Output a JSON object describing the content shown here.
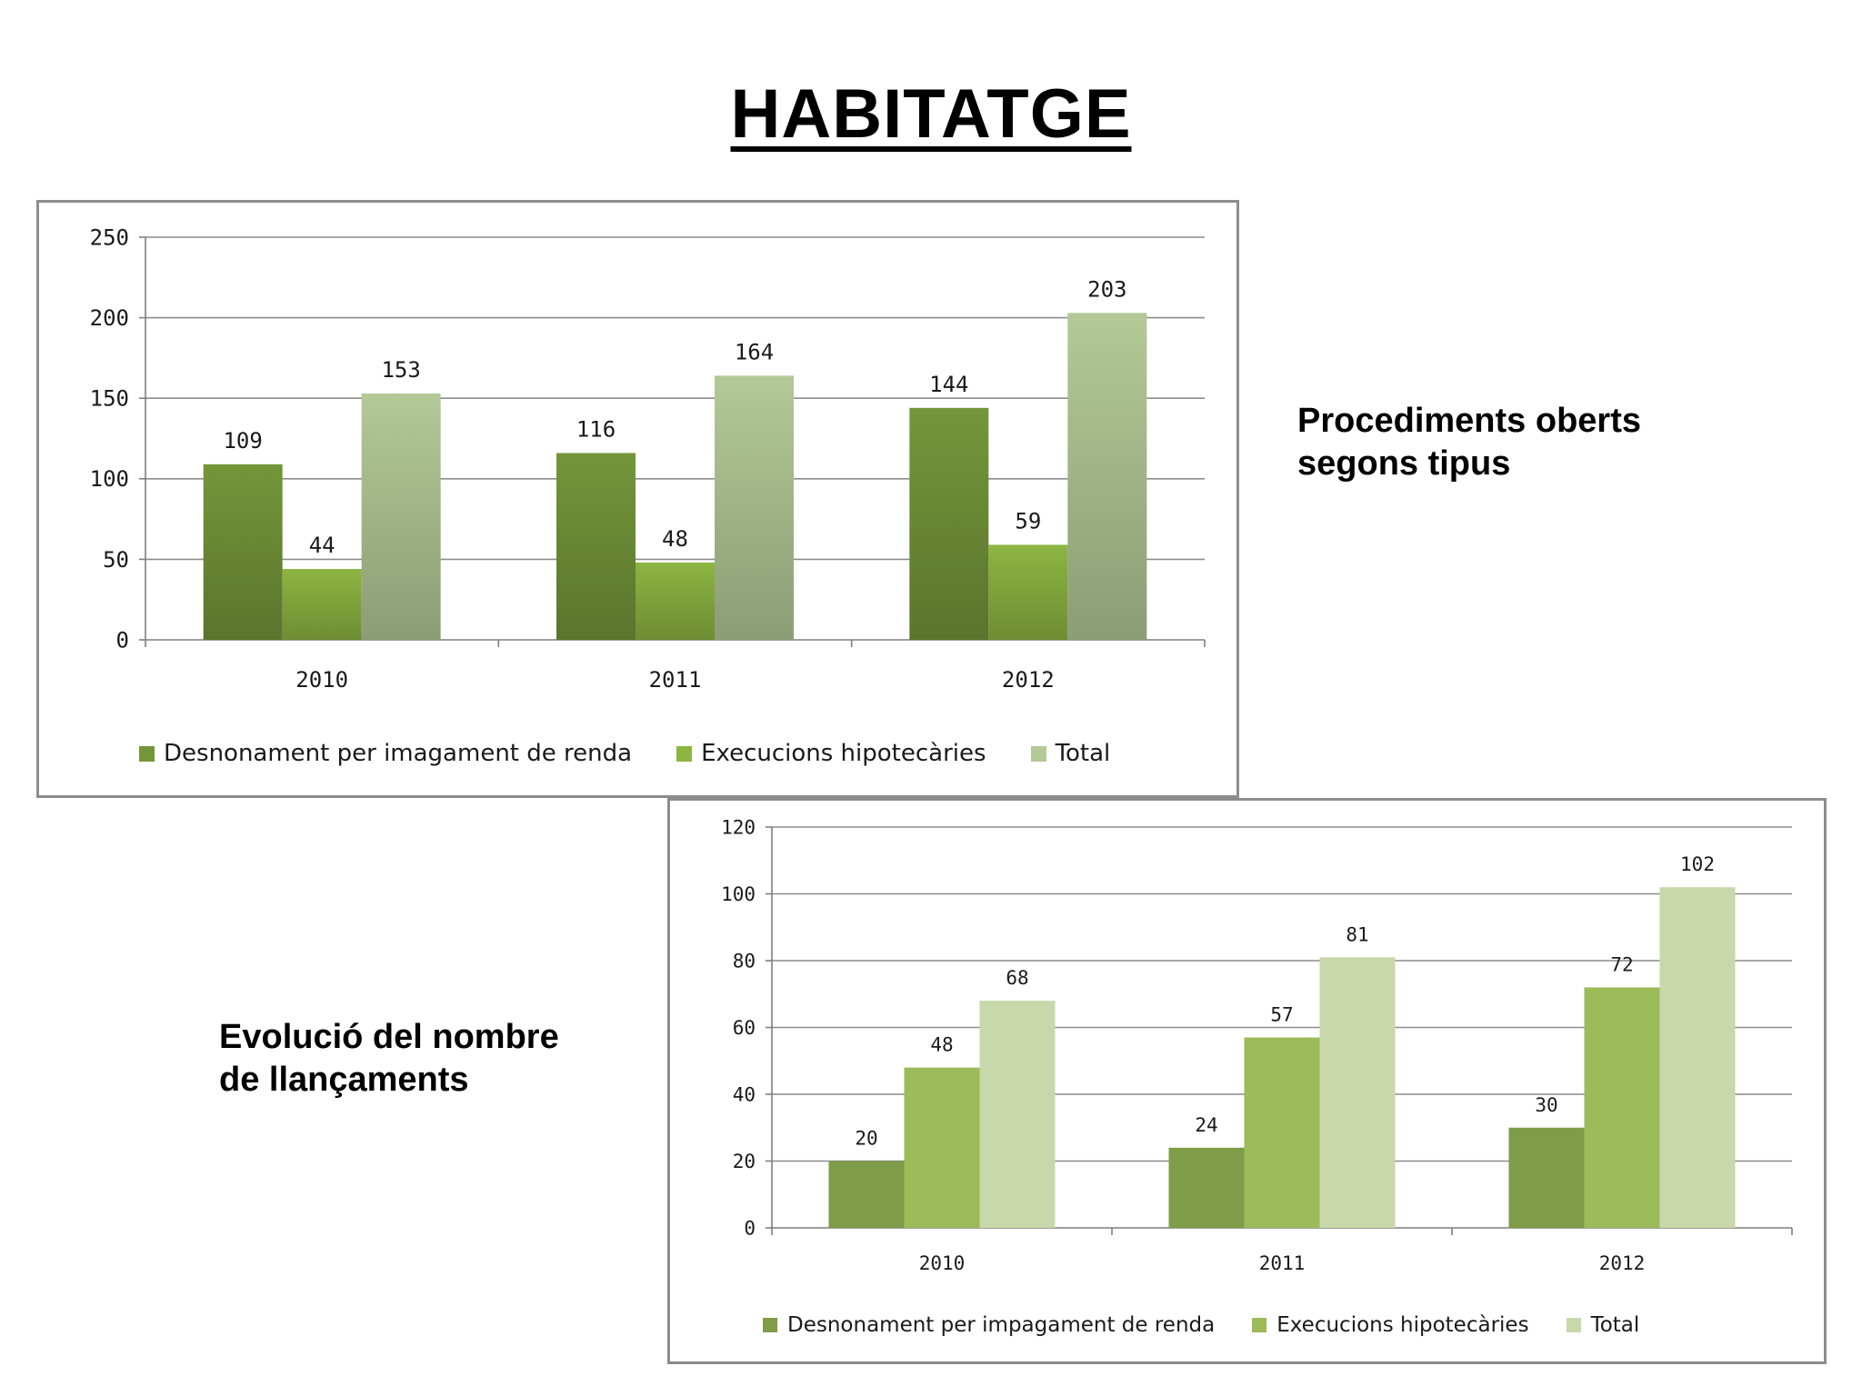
{
  "page": {
    "title": "HABITATGE",
    "label_top": [
      "Procediments oberts",
      "segons tipus"
    ],
    "label_bottom": [
      "Evolució del nombre",
      "de llançaments"
    ]
  },
  "chart_data": [
    {
      "type": "bar",
      "title": "Procediments oberts segons tipus",
      "categories": [
        "2010",
        "2011",
        "2012"
      ],
      "series": [
        {
          "name": "Desnonament per imagament de renda",
          "values": [
            109,
            116,
            144
          ],
          "color": "#74963a"
        },
        {
          "name": "Execucions hipotecàries",
          "values": [
            44,
            48,
            59
          ],
          "color": "#8db542"
        },
        {
          "name": "Total",
          "values": [
            153,
            164,
            203
          ],
          "color": "#b3c997"
        }
      ],
      "yticks": [
        "0",
        "50",
        "100",
        "150",
        "200",
        "250"
      ],
      "ylim": [
        0,
        250
      ],
      "grid": true,
      "legend": "bottom"
    },
    {
      "type": "bar",
      "title": "Evolució del nombre de llançaments",
      "categories": [
        "2010",
        "2011",
        "2012"
      ],
      "series": [
        {
          "name": "Desnonament per impagament de renda",
          "values": [
            20,
            24,
            30
          ],
          "color": "#7f9c48"
        },
        {
          "name": "Execucions hipotecàries",
          "values": [
            48,
            57,
            72
          ],
          "color": "#9cbb59"
        },
        {
          "name": "Total",
          "values": [
            68,
            81,
            102
          ],
          "color": "#c8d8ab"
        }
      ],
      "yticks": [
        "0",
        "20",
        "40",
        "60",
        "80",
        "100",
        "120"
      ],
      "ylim": [
        0,
        120
      ],
      "grid": true,
      "legend": "bottom"
    }
  ]
}
